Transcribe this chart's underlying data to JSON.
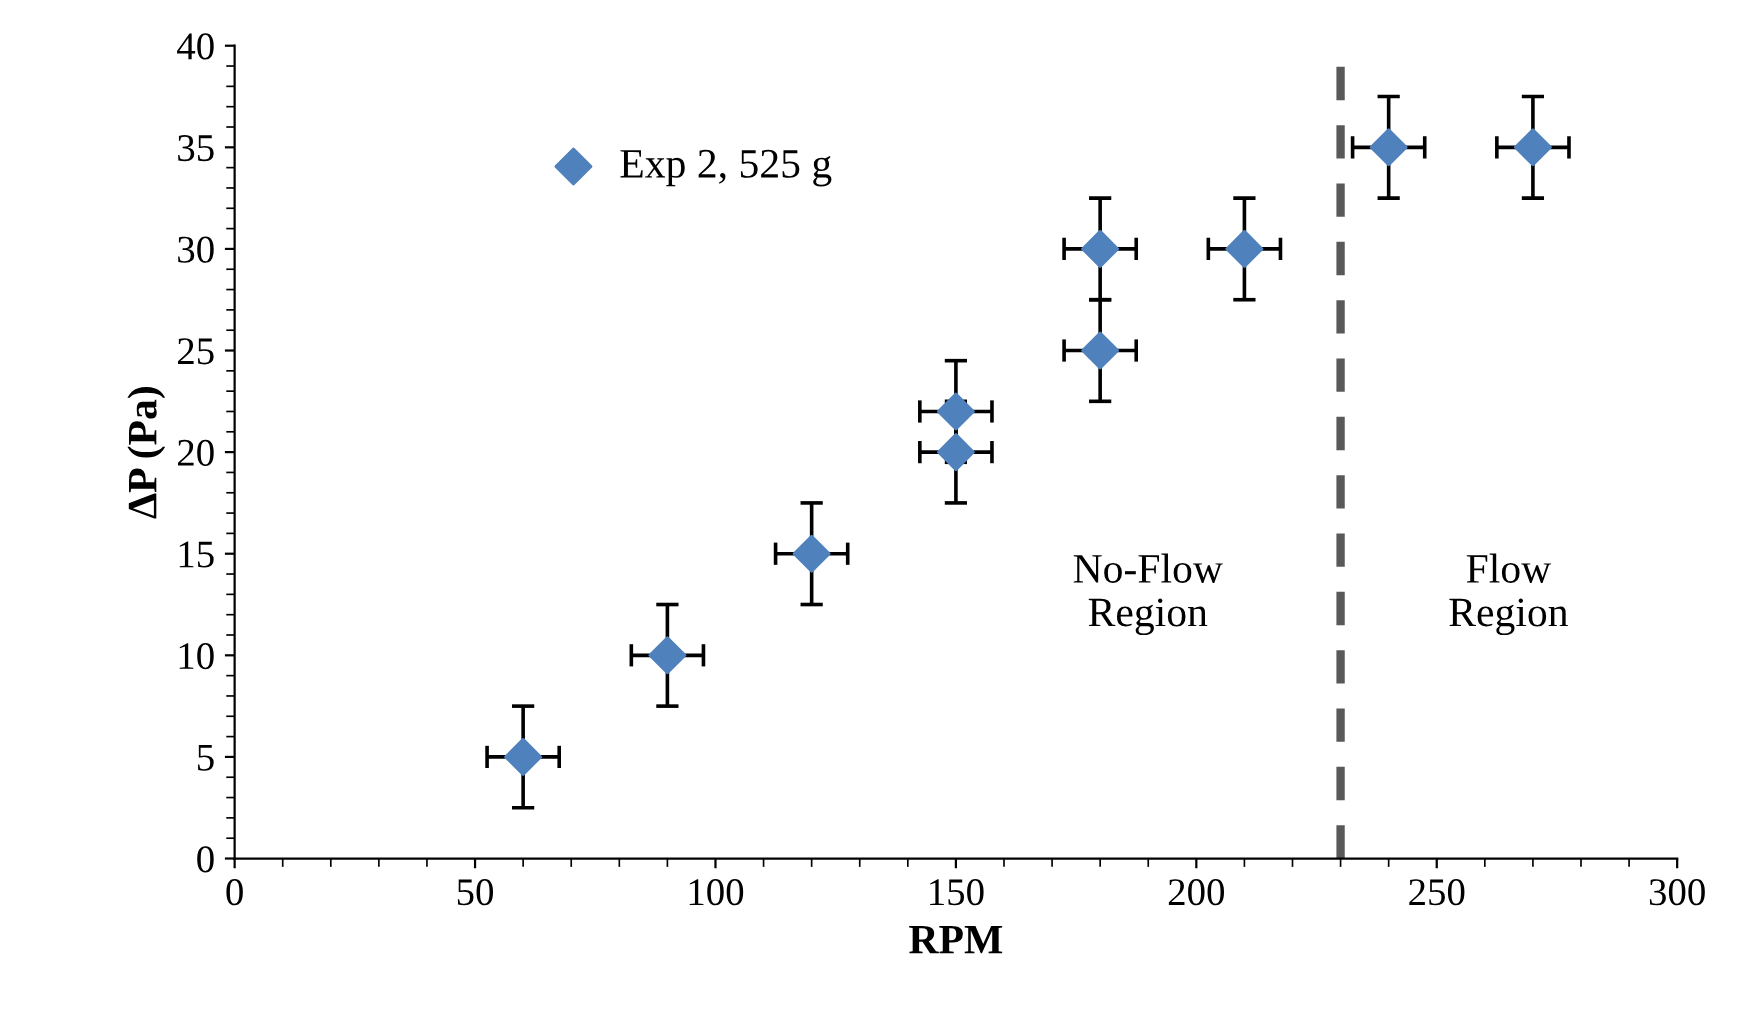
{
  "chart_data": {
    "type": "scatter",
    "xlabel": "RPM",
    "ylabel": "ΔP (Pa)",
    "xlim": [
      0,
      300
    ],
    "xticks": [
      0,
      50,
      100,
      150,
      200,
      250,
      300
    ],
    "ylim": [
      0,
      40
    ],
    "yticks": [
      0,
      5,
      10,
      15,
      20,
      25,
      30,
      35,
      40
    ],
    "grid": false,
    "legend": "top left",
    "marker": "diamond",
    "series": [
      {
        "name": "Exp 2, 525 g",
        "color": "#4f81bd",
        "x": [
          60,
          90,
          120,
          150,
          150,
          180,
          180,
          210,
          240,
          270
        ],
        "values": [
          5,
          10,
          15,
          20,
          22,
          25,
          30,
          30,
          35,
          35
        ],
        "errors": [
          2.5,
          2.5,
          2.5,
          2.5,
          2.5,
          2.5,
          2.5,
          2.5,
          2.5,
          2.5
        ],
        "xerrors": [
          7.5,
          7.5,
          7.5,
          7.5,
          7.5,
          7.5,
          7.5,
          7.5,
          7.5,
          7.5
        ]
      }
    ],
    "ref_lines": [
      {
        "axis": "x",
        "value": 230,
        "color": "#595959",
        "line_style": "dashed"
      }
    ],
    "annotations": [
      "No-Flow\nRegion",
      "Flow\nRegion"
    ]
  }
}
